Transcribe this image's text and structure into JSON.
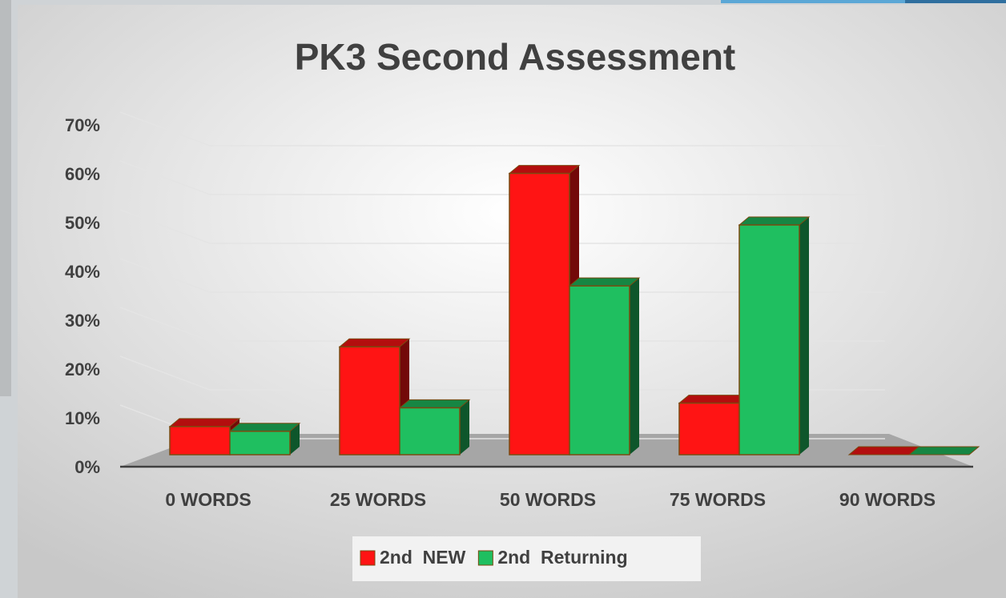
{
  "chart_data": {
    "type": "bar3d",
    "title": "PK3 Second Assessment",
    "categories": [
      "0 WORDS",
      "25 WORDS",
      "50 WORDS",
      "75 WORDS",
      "90 WORDS"
    ],
    "series": [
      {
        "name": "2nd  NEW",
        "color": "#ff1414",
        "values": [
          6,
          23,
          60,
          11,
          0
        ]
      },
      {
        "name": "2nd  Returning",
        "color": "#1fbf60",
        "values": [
          5,
          10,
          36,
          49,
          0
        ]
      }
    ],
    "ylim": [
      0,
      70
    ],
    "yticks": [
      {
        "value": 0,
        "label": "0%"
      },
      {
        "value": 10,
        "label": "10%"
      },
      {
        "value": 20,
        "label": "20%"
      },
      {
        "value": 30,
        "label": "30%"
      },
      {
        "value": 40,
        "label": "40%"
      },
      {
        "value": 50,
        "label": "50%"
      },
      {
        "value": 60,
        "label": "60%"
      },
      {
        "value": 70,
        "label": "70%"
      }
    ],
    "grid": true,
    "legend": "bottom"
  }
}
